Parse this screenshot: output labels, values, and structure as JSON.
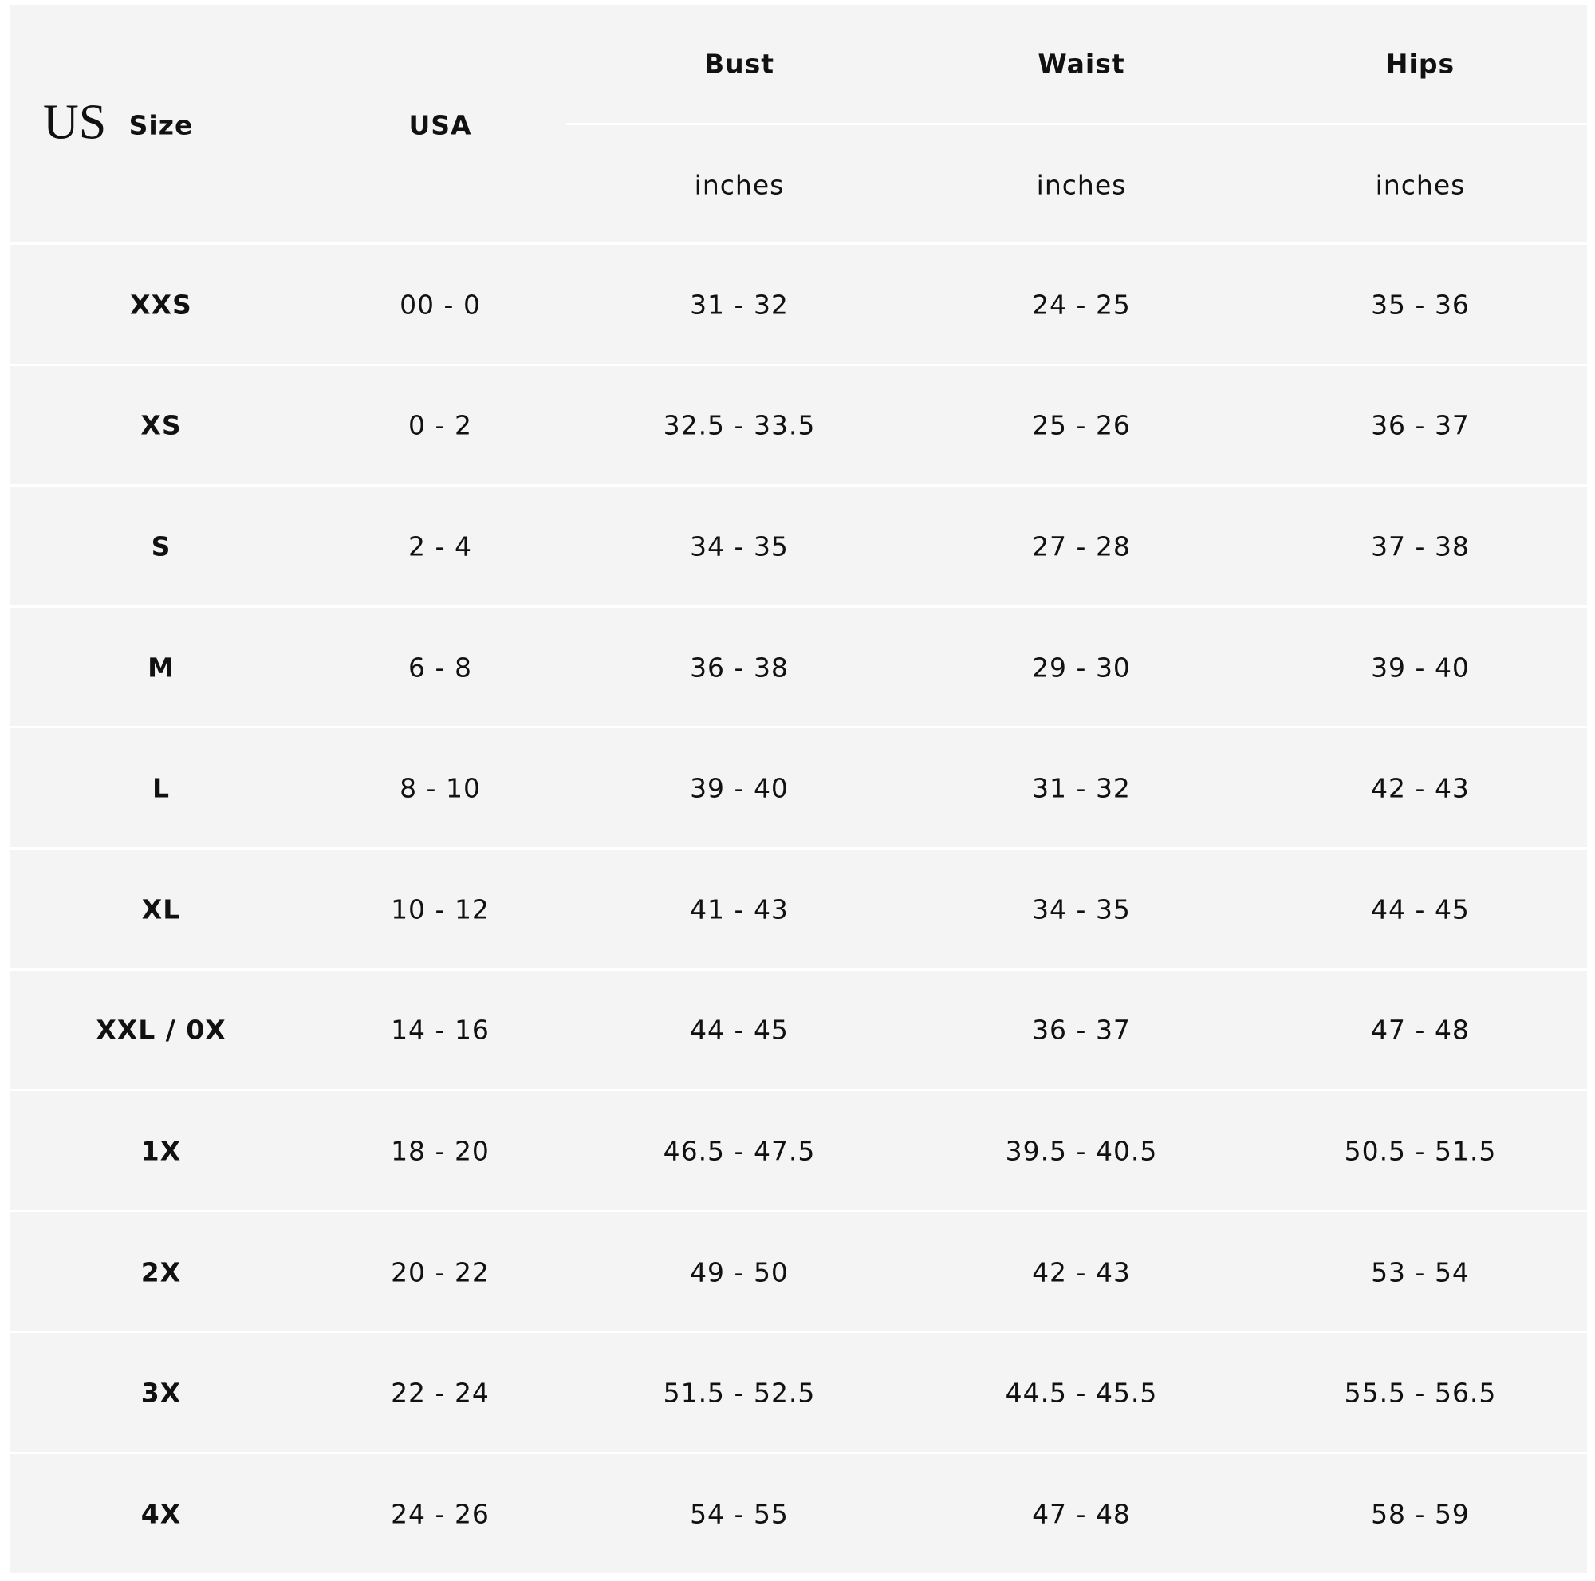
{
  "header": {
    "label": "US",
    "columns": [
      "Size",
      "USA",
      "Bust",
      "Waist",
      "Hips"
    ],
    "units": [
      "inches",
      "inches",
      "inches"
    ]
  },
  "table": {
    "rows": [
      [
        "XXS",
        "00 - 0",
        "31 - 32",
        "24 - 25",
        "35 - 36"
      ],
      [
        "XS",
        "0 - 2",
        "32.5 - 33.5",
        "25 - 26",
        "36 - 37"
      ],
      [
        "S",
        "2 - 4",
        "34 - 35",
        "27 - 28",
        "37 - 38"
      ],
      [
        "M",
        "6 - 8",
        "36 - 38",
        "29 - 30",
        "39 - 40"
      ],
      [
        "L",
        "8 - 10",
        "39 - 40",
        "31 - 32",
        "42 - 43"
      ],
      [
        "XL",
        "10 - 12",
        "41 - 43",
        "34 - 35",
        "44 - 45"
      ],
      [
        "XXL / 0X",
        "14 - 16",
        "44 - 45",
        "36 - 37",
        "47 - 48"
      ],
      [
        "1X",
        "18 - 20",
        "46.5 - 47.5",
        "39.5 - 40.5",
        "50.5 - 51.5"
      ],
      [
        "2X",
        "20 - 22",
        "49 - 50",
        "42 - 43",
        "53 - 54"
      ],
      [
        "3X",
        "22 - 24",
        "51.5 - 52.5",
        "44.5 - 45.5",
        "55.5 - 56.5"
      ],
      [
        "4X",
        "24 - 26",
        "54 - 55",
        "47 - 48",
        "58 - 59"
      ]
    ]
  }
}
